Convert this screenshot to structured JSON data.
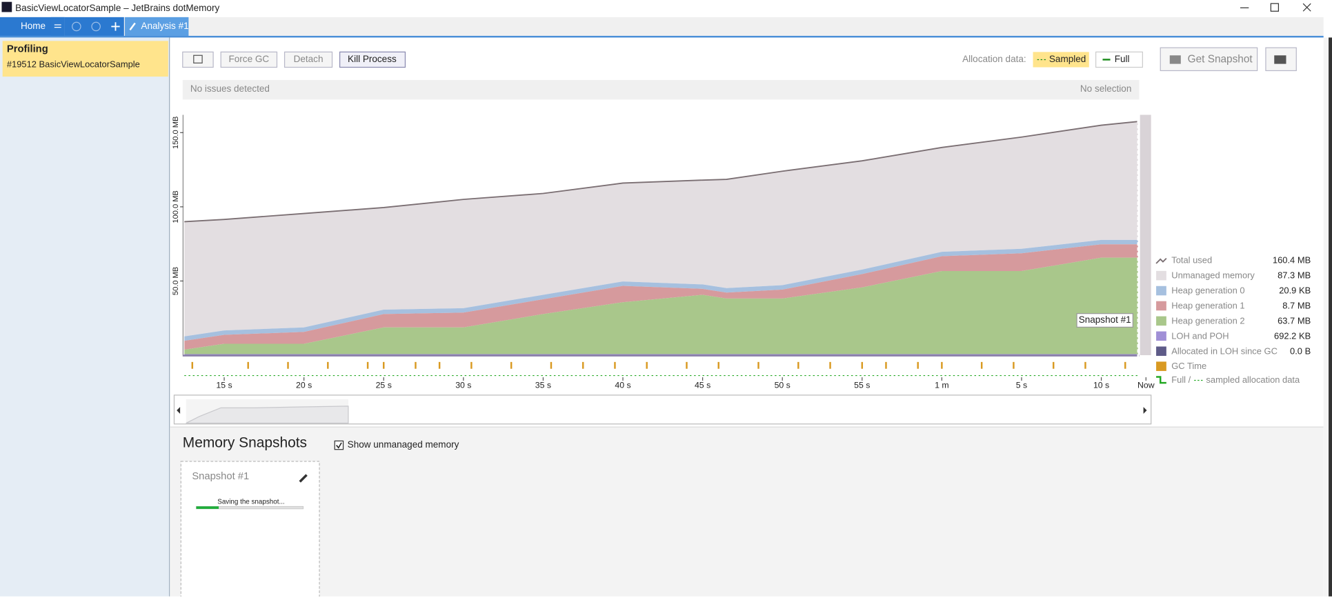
{
  "window": {
    "title": "BasicViewLocatorSample – JetBrains dotMemory"
  },
  "tabs": {
    "home": "Home",
    "analysis": "Analysis #1"
  },
  "sidebar": {
    "title": "Profiling",
    "subtitle": "#19512 BasicViewLocatorSample"
  },
  "toolbar": {
    "force_gc": "Force GC",
    "detach": "Detach",
    "kill_process": "Kill Process",
    "allocation_label": "Allocation data:",
    "sampled": "Sampled",
    "full": "Full",
    "get_snapshot": "Get Snapshot"
  },
  "status": {
    "left": "No issues detected",
    "right": "No selection"
  },
  "chart_data": {
    "type": "area",
    "x": [
      12.5,
      15,
      20,
      25,
      30,
      35,
      40,
      45,
      46.5,
      50,
      55,
      60,
      65,
      70,
      72.3
    ],
    "xlim": [
      12.5,
      72.8
    ],
    "xticks": [
      {
        "value": 15,
        "label": "15 s"
      },
      {
        "value": 20,
        "label": "20 s"
      },
      {
        "value": 25,
        "label": "25 s"
      },
      {
        "value": 30,
        "label": "30 s"
      },
      {
        "value": 35,
        "label": "35 s"
      },
      {
        "value": 40,
        "label": "40 s"
      },
      {
        "value": 45,
        "label": "45 s"
      },
      {
        "value": 50,
        "label": "50 s"
      },
      {
        "value": 55,
        "label": "55 s"
      },
      {
        "value": 60,
        "label": "1 m"
      },
      {
        "value": 65,
        "label": "5 s"
      },
      {
        "value": 70,
        "label": "10 s"
      },
      {
        "value": 72.8,
        "label": "Now"
      }
    ],
    "ylim": [
      0,
      162
    ],
    "yticks": [
      {
        "value": 50,
        "label": "50.0 MB"
      },
      {
        "value": 100,
        "label": "100.0 MB"
      },
      {
        "value": 150,
        "label": "150.0 MB"
      }
    ],
    "series": [
      {
        "name": "Total used",
        "kind": "line",
        "color": "#7a6e72",
        "current": "160.4 MB",
        "values": [
          90,
          91.5,
          95.5,
          99.5,
          105,
          109,
          116,
          118,
          118.5,
          124,
          131,
          140,
          147,
          155,
          157.5
        ]
      },
      {
        "name": "Unmanaged memory",
        "kind": "area",
        "color": "#e3dee1",
        "current": "87.3 MB",
        "values": [
          77.3,
          74.8,
          76.8,
          68.8,
          73.3,
          68.3,
          66.3,
          70.3,
          73.3,
          76.8,
          73.3,
          70.3,
          75.3,
          77.3,
          79.8
        ]
      },
      {
        "name": "Heap generation 0",
        "kind": "area",
        "color": "#a6c0df",
        "current": "20.9 KB",
        "values": [
          3,
          3,
          3,
          3,
          3,
          3,
          3,
          3,
          3,
          3,
          3,
          3,
          3,
          3,
          3
        ]
      },
      {
        "name": "Heap generation 1",
        "kind": "area",
        "color": "#d69a9d",
        "current": "8.7 MB",
        "values": [
          6,
          6,
          8,
          9,
          10,
          10,
          11,
          4,
          4,
          6,
          9,
          10,
          12,
          9,
          9
        ]
      },
      {
        "name": "Heap generation 2",
        "kind": "area",
        "color": "#a9c78b",
        "current": "63.7 MB",
        "values": [
          3,
          7,
          7,
          18,
          18,
          27,
          35,
          40,
          37.5,
          37.5,
          45,
          56,
          56,
          65,
          65
        ]
      },
      {
        "name": "LOH and POH",
        "kind": "area",
        "color": "#a08fd6",
        "current": "692.2 KB",
        "values": [
          0.7,
          0.7,
          0.7,
          0.7,
          0.7,
          0.7,
          0.7,
          0.7,
          0.7,
          0.7,
          0.7,
          0.7,
          0.7,
          0.7,
          0.7
        ]
      },
      {
        "name": "Allocated in LOH since GC",
        "kind": "area",
        "color": "#5e5b88",
        "current": "0.0 B",
        "values": [
          0,
          0,
          0,
          0,
          0,
          0,
          0,
          0,
          0,
          0,
          0,
          0,
          0,
          0,
          0
        ]
      }
    ],
    "gc_legend": {
      "name": "GC Time",
      "color": "#d99a22"
    },
    "alloc_legend": {
      "full": "Full /",
      "sampled": "sampled allocation data",
      "color": "#22a822"
    },
    "gc_times": [
      13,
      16.5,
      19,
      21.5,
      24,
      25,
      27,
      28.5,
      30.5,
      33,
      35.5,
      37.5,
      39.5,
      41.5,
      44,
      46,
      48.5,
      51,
      53,
      55,
      56.5,
      58.5,
      60,
      62.5,
      64.5,
      67,
      69,
      71.5
    ],
    "snapshot_marker": {
      "x": 72.3,
      "label": "Snapshot #1"
    }
  },
  "snapshots": {
    "title": "Memory Snapshots",
    "show_unmanaged": "Show unmanaged memory",
    "cards": [
      {
        "name": "Snapshot #1",
        "status": "Saving the snapshot...",
        "progress": 21
      }
    ]
  }
}
